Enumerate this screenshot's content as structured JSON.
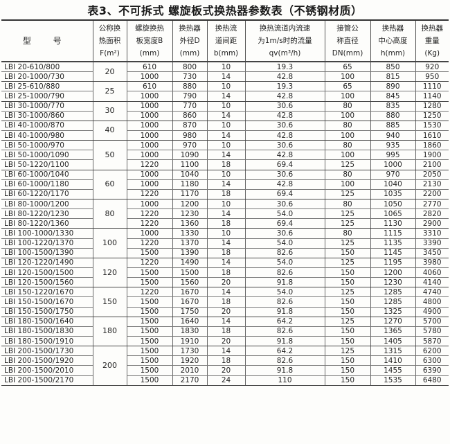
{
  "title": "表3、不可拆式  螺旋板式换热器参数表（不锈钢材质）",
  "headers": [
    [
      "型  号"
    ],
    [
      "公称换",
      "热面积",
      "F(m²)"
    ],
    [
      "螺旋换热",
      "板宽度B",
      "(mm)"
    ],
    [
      "换热器",
      "外径D",
      "(mm)"
    ],
    [
      "换热流",
      "道间距",
      "b(mm)"
    ],
    [
      "换热流道内流速",
      "为1m/s时的流量",
      "qv(m³/h)"
    ],
    [
      "接管公",
      "称直径",
      "DN(mm)"
    ],
    [
      "换热器",
      "中心高度",
      "h(mm)"
    ],
    [
      "换热器",
      "重量",
      "(Kg)"
    ]
  ],
  "groups": [
    {
      "F": "20",
      "rows": [
        [
          "LBI 20-610/800",
          "610",
          "800",
          "10",
          "19.3",
          "65",
          "850",
          "920"
        ],
        [
          "LBI 20-1000/730",
          "1000",
          "730",
          "14",
          "42.8",
          "100",
          "815",
          "950"
        ]
      ]
    },
    {
      "F": "25",
      "rows": [
        [
          "LBI 25-610/880",
          "610",
          "880",
          "10",
          "19.3",
          "65",
          "890",
          "1110"
        ],
        [
          "LBI 25-1000/790",
          "1000",
          "790",
          "14",
          "42.8",
          "100",
          "845",
          "1140"
        ]
      ]
    },
    {
      "F": "30",
      "rows": [
        [
          "LBI 30-1000/770",
          "1000",
          "770",
          "10",
          "30.6",
          "80",
          "835",
          "1280"
        ],
        [
          "LBI 30-1000/860",
          "1000",
          "860",
          "14",
          "42.8",
          "100",
          "880",
          "1250"
        ]
      ]
    },
    {
      "F": "40",
      "rows": [
        [
          "LBI 40-1000/870",
          "1000",
          "870",
          "10",
          "30.6",
          "80",
          "885",
          "1530"
        ],
        [
          "LBI 40-1000/980",
          "1000",
          "980",
          "14",
          "42.8",
          "100",
          "940",
          "1610"
        ]
      ]
    },
    {
      "F": "50",
      "rows": [
        [
          "LBI 50-1000/970",
          "1000",
          "970",
          "10",
          "30.6",
          "80",
          "935",
          "1860"
        ],
        [
          "LBI 50-1000/1090",
          "1000",
          "1090",
          "14",
          "42.8",
          "100",
          "995",
          "1900"
        ],
        [
          "LBI 50-1220/1100",
          "1220",
          "1100",
          "18",
          "69.4",
          "125",
          "1000",
          "2100"
        ]
      ]
    },
    {
      "F": "60",
      "rows": [
        [
          "LBI 60-1000/1040",
          "1000",
          "1040",
          "10",
          "30.6",
          "80",
          "970",
          "2050"
        ],
        [
          "LBI 60-1000/1180",
          "1000",
          "1180",
          "14",
          "42.8",
          "100",
          "1040",
          "2130"
        ],
        [
          "LBI 60-1220/1170",
          "1220",
          "1170",
          "18",
          "69.4",
          "125",
          "1035",
          "2200"
        ]
      ]
    },
    {
      "F": "80",
      "rows": [
        [
          "LBI 80-1000/1200",
          "1000",
          "1200",
          "10",
          "30.6",
          "80",
          "1050",
          "2770"
        ],
        [
          "LBI 80-1220/1230",
          "1220",
          "1230",
          "14",
          "54.0",
          "125",
          "1065",
          "2820"
        ],
        [
          "LBI 80-1220/1360",
          "1220",
          "1360",
          "18",
          "69.4",
          "125",
          "1130",
          "2900"
        ]
      ]
    },
    {
      "F": "100",
      "rows": [
        [
          "LBI 100-1000/1330",
          "1000",
          "1330",
          "10",
          "30.6",
          "80",
          "1115",
          "3310"
        ],
        [
          "LBI 100-1220/1370",
          "1220",
          "1370",
          "14",
          "54.0",
          "125",
          "1135",
          "3390"
        ],
        [
          "LBI 100-1500/1390",
          "1500",
          "1390",
          "18",
          "82.6",
          "150",
          "1145",
          "3450"
        ]
      ]
    },
    {
      "F": "120",
      "rows": [
        [
          "LBI 120-1220/1490",
          "1220",
          "1490",
          "14",
          "54.0",
          "125",
          "1195",
          "3980"
        ],
        [
          "LBI 120-1500/1500",
          "1500",
          "1500",
          "18",
          "82.6",
          "150",
          "1200",
          "4060"
        ],
        [
          "LBI 120-1500/1560",
          "1500",
          "1560",
          "20",
          "91.8",
          "150",
          "1230",
          "4140"
        ]
      ]
    },
    {
      "F": "150",
      "rows": [
        [
          "LBI 150-1220/1670",
          "1220",
          "1670",
          "14",
          "54.0",
          "125",
          "1285",
          "4740"
        ],
        [
          "LBI 150-1500/1670",
          "1500",
          "1670",
          "18",
          "82.6",
          "150",
          "1285",
          "4800"
        ],
        [
          "LBI 150-1500/1750",
          "1500",
          "1750",
          "20",
          "91.8",
          "150",
          "1325",
          "4900"
        ]
      ]
    },
    {
      "F": "180",
      "rows": [
        [
          "LBI 180-1500/1640",
          "1500",
          "1640",
          "14",
          "64.2",
          "125",
          "1270",
          "5700"
        ],
        [
          "LBI 180-1500/1830",
          "1500",
          "1830",
          "18",
          "82.6",
          "150",
          "1365",
          "5780"
        ],
        [
          "LBI 180-1500/1910",
          "1500",
          "1910",
          "20",
          "91.8",
          "150",
          "1405",
          "5870"
        ]
      ]
    },
    {
      "F": "200",
      "rows": [
        [
          "LBI 200-1500/1730",
          "1500",
          "1730",
          "14",
          "64.2",
          "125",
          "1315",
          "6200"
        ],
        [
          "LBI 200-1500/1920",
          "1500",
          "1920",
          "18",
          "82.6",
          "150",
          "1410",
          "6300"
        ],
        [
          "LBI 200-1500/2010",
          "1500",
          "2010",
          "20",
          "91.8",
          "150",
          "1455",
          "6390"
        ],
        [
          "LBI 200-1500/2170",
          "1500",
          "2170",
          "24",
          "110",
          "150",
          "1535",
          "6480"
        ]
      ]
    }
  ]
}
